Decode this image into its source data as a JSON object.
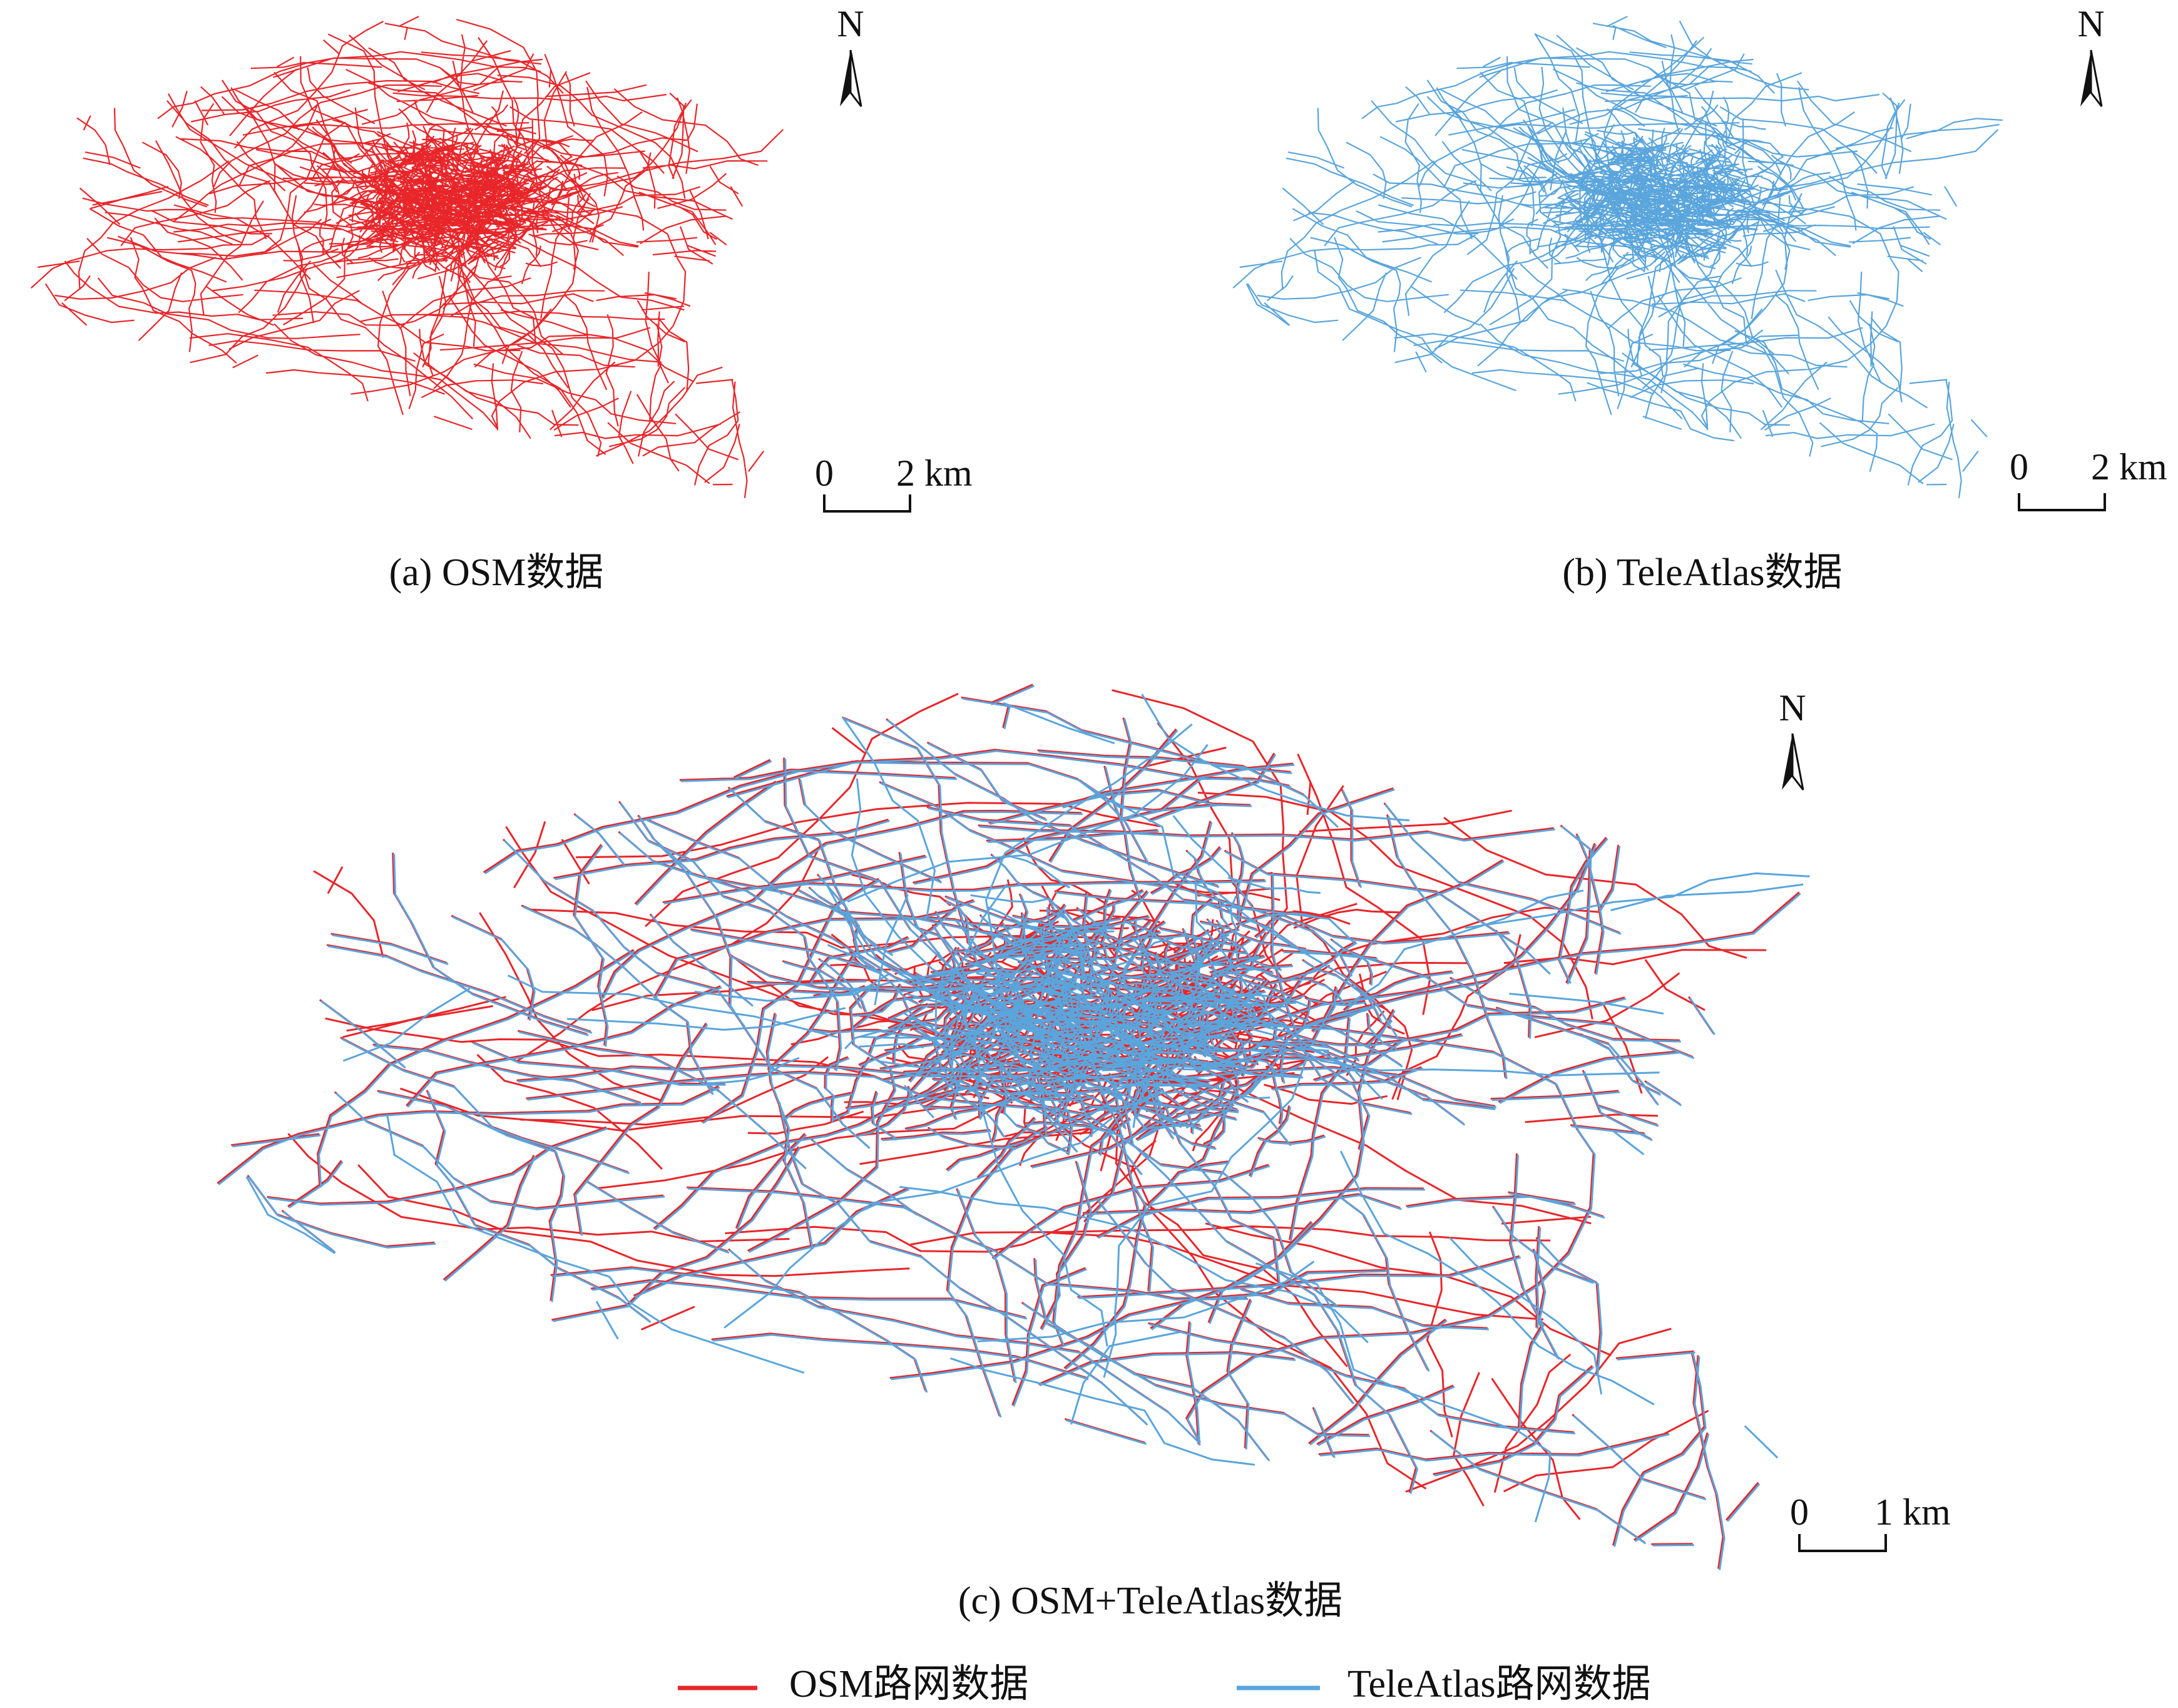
{
  "panels": [
    {
      "caption": "(a) OSM数据",
      "north": "N",
      "scale_bar": {
        "start": "0",
        "end": "2 km"
      }
    },
    {
      "caption": "(b) TeleAtlas数据",
      "north": "N",
      "scale_bar": {
        "start": "0",
        "end": "2 km"
      }
    },
    {
      "caption": "(c) OSM+TeleAtlas数据",
      "north": "N",
      "scale_bar": {
        "start": "0",
        "end": "1 km"
      }
    }
  ],
  "legend": [
    {
      "label": "OSM路网数据",
      "color": "#e8262a"
    },
    {
      "label": "TeleAtlas路网数据",
      "color": "#5aa5dc"
    }
  ]
}
